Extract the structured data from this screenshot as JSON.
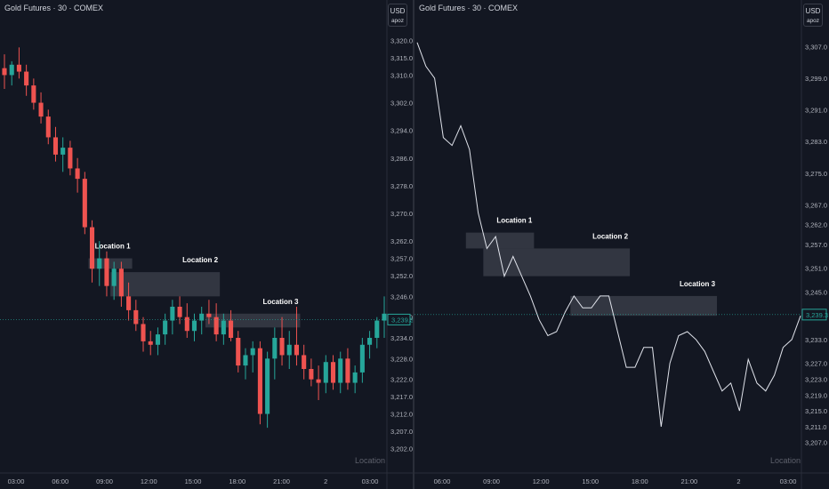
{
  "left_panel": {
    "title": "Gold Futures · 30 · COMEX",
    "currency": "USD",
    "currency_sub": "apoz",
    "watermark": "Location",
    "price_label": "3,239.3"
  },
  "right_panel": {
    "title": "Gold Futures · 30 · COMEX",
    "currency": "USD",
    "currency_sub": "apoz",
    "watermark": "Location",
    "price_label": "3,239.3"
  },
  "colors": {
    "bg": "#131722",
    "up": "#26a69a",
    "down": "#ef5350",
    "zone": "#363a45",
    "line": "#e0e3eb",
    "grid": "#1f2330"
  },
  "chart_data": [
    {
      "type": "candlestick",
      "title": "Gold Futures · 30 · COMEX",
      "ylim": [
        3198,
        3324
      ],
      "y_ticks": [
        3320.0,
        3315.0,
        3310.0,
        3302.0,
        3294.0,
        3286.0,
        3278.0,
        3270.0,
        3262.0,
        3257.0,
        3252.0,
        3246.0,
        3240.0,
        3234.0,
        3228.0,
        3222.0,
        3217.0,
        3212.0,
        3207.0,
        3202.0
      ],
      "y_tick_labels": [
        "3,320.0",
        "3,315.0",
        "3,310.0",
        "3,302.0",
        "3,294.0",
        "3,286.0",
        "3,278.0",
        "3,270.0",
        "3,262.0",
        "3,257.0",
        "3,252.0",
        "3,246.0",
        "3,240.0",
        "3,234.0",
        "3,228.0",
        "3,222.0",
        "3,217.0",
        "3,212.0",
        "3,207.0",
        "3,202.0"
      ],
      "x_ticks": [
        "03:00",
        "06:00",
        "09:00",
        "12:00",
        "15:00",
        "18:00",
        "21:00",
        "2",
        "03:00"
      ],
      "candles": [
        [
          3312,
          3316,
          3306,
          3310
        ],
        [
          3310,
          3314,
          3307,
          3313
        ],
        [
          3313,
          3318,
          3309,
          3311
        ],
        [
          3311,
          3313,
          3304,
          3307
        ],
        [
          3307,
          3309,
          3300,
          3302
        ],
        [
          3302,
          3305,
          3296,
          3298
        ],
        [
          3298,
          3300,
          3290,
          3292
        ],
        [
          3292,
          3295,
          3285,
          3287
        ],
        [
          3287,
          3292,
          3282,
          3289
        ],
        [
          3289,
          3291,
          3281,
          3283
        ],
        [
          3283,
          3286,
          3276,
          3280
        ],
        [
          3280,
          3282,
          3264,
          3266
        ],
        [
          3266,
          3268,
          3250,
          3254
        ],
        [
          3254,
          3262,
          3249,
          3257
        ],
        [
          3257,
          3259,
          3246,
          3249
        ],
        [
          3249,
          3256,
          3245,
          3254
        ],
        [
          3254,
          3256,
          3243,
          3246
        ],
        [
          3246,
          3250,
          3239,
          3242
        ],
        [
          3242,
          3245,
          3236,
          3238
        ],
        [
          3238,
          3240,
          3230,
          3233
        ],
        [
          3233,
          3236,
          3229,
          3232
        ],
        [
          3232,
          3237,
          3229,
          3235
        ],
        [
          3235,
          3241,
          3232,
          3239
        ],
        [
          3239,
          3245,
          3235,
          3243
        ],
        [
          3243,
          3246,
          3238,
          3240
        ],
        [
          3240,
          3244,
          3234,
          3236
        ],
        [
          3236,
          3241,
          3233,
          3239
        ],
        [
          3239,
          3243,
          3235,
          3241
        ],
        [
          3241,
          3245,
          3238,
          3240
        ],
        [
          3240,
          3244,
          3233,
          3235
        ],
        [
          3235,
          3241,
          3232,
          3239
        ],
        [
          3239,
          3242,
          3233,
          3234
        ],
        [
          3234,
          3236,
          3224,
          3226
        ],
        [
          3226,
          3231,
          3222,
          3229
        ],
        [
          3229,
          3233,
          3224,
          3231
        ],
        [
          3231,
          3233,
          3209,
          3212
        ],
        [
          3212,
          3230,
          3208,
          3228
        ],
        [
          3228,
          3237,
          3222,
          3234
        ],
        [
          3234,
          3240,
          3226,
          3229
        ],
        [
          3229,
          3236,
          3225,
          3232
        ],
        [
          3232,
          3243,
          3226,
          3229
        ],
        [
          3229,
          3232,
          3222,
          3225
        ],
        [
          3225,
          3228,
          3220,
          3222
        ],
        [
          3222,
          3226,
          3216,
          3221
        ],
        [
          3221,
          3229,
          3218,
          3227
        ],
        [
          3227,
          3229,
          3219,
          3221
        ],
        [
          3221,
          3230,
          3218,
          3228
        ],
        [
          3228,
          3231,
          3219,
          3221
        ],
        [
          3221,
          3226,
          3218,
          3224
        ],
        [
          3224,
          3234,
          3221,
          3232
        ],
        [
          3232,
          3236,
          3228,
          3234
        ],
        [
          3234,
          3240,
          3231,
          3239
        ],
        [
          3239,
          3246,
          3234,
          3241
        ]
      ],
      "zones": [
        {
          "label": "Location 1",
          "from_index": 12,
          "to_index": 17,
          "low": 3254,
          "high": 3257
        },
        {
          "label": "Location 2",
          "from_index": 15,
          "to_index": 29,
          "low": 3246,
          "high": 3253
        },
        {
          "label": "Location 3",
          "from_index": 28,
          "to_index": 40,
          "low": 3237,
          "high": 3241
        }
      ],
      "last_price": 3239.3
    },
    {
      "type": "line",
      "title": "Gold Futures · 30 · COMEX",
      "ylim": [
        3202,
        3312
      ],
      "y_ticks": [
        3307.0,
        3299.0,
        3291.0,
        3283.0,
        3275.0,
        3267.0,
        3262.0,
        3257.0,
        3251.0,
        3245.0,
        3233.0,
        3227.0,
        3223.0,
        3219.0,
        3215.0,
        3211.0,
        3207.0
      ],
      "y_tick_labels": [
        "3,307.0",
        "3,299.0",
        "3,291.0",
        "3,283.0",
        "3,275.0",
        "3,267.0",
        "3,262.0",
        "3,257.0",
        "3,251.0",
        "3,245.0",
        "3,233.0",
        "3,227.0",
        "3,223.0",
        "3,219.0",
        "3,215.0",
        "3,211.0",
        "3,207.0"
      ],
      "x_ticks": [
        "06:00",
        "09:00",
        "12:00",
        "15:00",
        "18:00",
        "21:00",
        "2",
        "03:00"
      ],
      "values": [
        3308,
        3302,
        3299,
        3284,
        3282,
        3287,
        3281,
        3265,
        3256,
        3259,
        3249,
        3254,
        3249,
        3244,
        3238,
        3234,
        3235,
        3240,
        3244,
        3241,
        3241,
        3244,
        3244,
        3235,
        3226,
        3226,
        3231,
        3231,
        3211,
        3227,
        3234,
        3235,
        3233,
        3230,
        3225,
        3220,
        3222,
        3215,
        3228,
        3222,
        3220,
        3224,
        3231,
        3233,
        3239
      ],
      "zones": [
        {
          "label": "Location 1",
          "from_index": 6,
          "to_index": 13,
          "low": 3256,
          "high": 3260
        },
        {
          "label": "Location 2",
          "from_index": 8,
          "to_index": 24,
          "low": 3249,
          "high": 3256
        },
        {
          "label": "Location 3",
          "from_index": 18,
          "to_index": 34,
          "low": 3239,
          "high": 3244
        }
      ],
      "last_price": 3239.3
    }
  ]
}
